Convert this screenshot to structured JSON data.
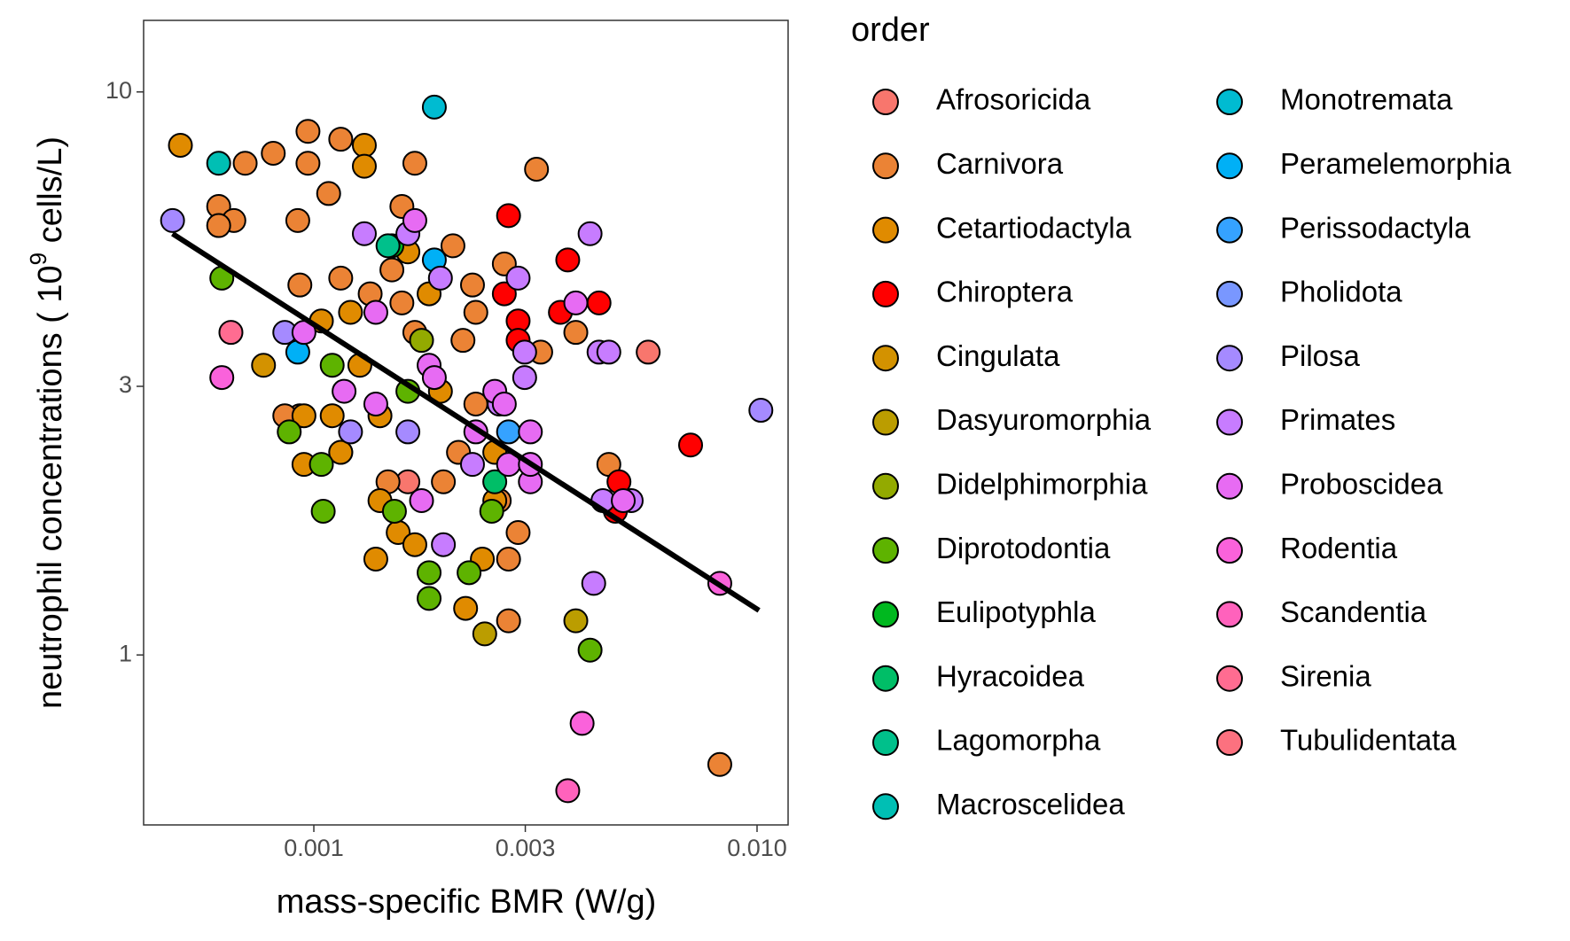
{
  "chart_data": {
    "type": "scatter",
    "xlabel": "mass-specific BMR (W/g)",
    "ylabel": {
      "main": "neutrophil concentrations ( 10",
      "sup": "9",
      "tail": " cells/L)"
    },
    "legend_title": "order",
    "xscale": "log",
    "yscale": "log",
    "xlim": [
      0.000413,
      0.01175
    ],
    "ylim": [
      0.499,
      13.4
    ],
    "xticks": [
      0.001,
      0.003,
      {
        "value": 0.01,
        "label": "0.010"
      }
    ],
    "yticks": [
      1,
      3,
      10
    ],
    "series": [
      {
        "name": "Afrosoricida",
        "color": "#F8766D",
        "x": [
          0.00163,
          0.00568
        ],
        "y": [
          2.03,
          3.45
        ]
      },
      {
        "name": "Carnivora",
        "color": "#EB8335",
        "x": [
          0.00097,
          0.00115,
          0.00097,
          0.00081,
          0.0007,
          0.00169,
          0.00318,
          0.00108,
          0.00158,
          0.00061,
          0.00066,
          0.00061,
          0.00092,
          0.00206,
          0.00269,
          0.0015,
          0.00115,
          0.00093,
          0.00228,
          0.00158,
          0.00134,
          0.00232,
          0.00169,
          0.00217,
          0.00325,
          0.0039,
          0.00093,
          0.00086,
          0.00115,
          0.00212,
          0.00147,
          0.00196,
          0.00262,
          0.00232,
          0.00289,
          0.00275,
          0.00275,
          0.00824,
          0.00463
        ],
        "y": [
          8.51,
          8.24,
          7.47,
          7.78,
          7.47,
          7.47,
          7.29,
          6.6,
          6.26,
          6.26,
          5.91,
          5.79,
          5.91,
          5.33,
          4.95,
          4.83,
          4.67,
          4.54,
          4.54,
          4.22,
          4.38,
          4.06,
          3.74,
          3.62,
          3.45,
          3.74,
          2.66,
          2.66,
          2.29,
          2.29,
          2.03,
          2.03,
          1.88,
          2.79,
          1.65,
          1.48,
          1.15,
          0.639,
          2.18
        ]
      },
      {
        "name": "Cetartiodactyla",
        "color": "#E08B00",
        "x": [
          0.0005,
          0.0013,
          0.0013,
          0.00163,
          0.00104,
          0.00121,
          0.00182,
          0.00127,
          0.00095,
          0.00141,
          0.00095,
          0.0011,
          0.00115,
          0.00155,
          0.00169,
          0.00138,
          0.0024,
          0.0022,
          0.00256,
          0.00256,
          0.00193,
          0.00141
        ],
        "y": [
          8.04,
          8.04,
          7.38,
          5.2,
          3.92,
          4.06,
          4.38,
          3.27,
          2.66,
          2.66,
          2.18,
          2.66,
          2.29,
          1.65,
          1.57,
          1.48,
          1.48,
          1.21,
          1.88,
          2.29,
          2.94,
          1.88
        ]
      },
      {
        "name": "Chiroptera",
        "color": "#FF0000",
        "x": [
          0.00275,
          0.00269,
          0.00374,
          0.0044,
          0.0036,
          0.00289,
          0.00289,
          0.00708,
          0.00488,
          0.00479
        ],
        "y": [
          6.03,
          4.38,
          5.03,
          4.22,
          4.06,
          3.92,
          3.62,
          2.36,
          2.03,
          1.8
        ]
      },
      {
        "name": "Cingulata",
        "color": "#D39200",
        "x": [
          0.00077
        ],
        "y": [
          3.27
        ]
      },
      {
        "name": "Dasyuromorphia",
        "color": "#BB9D00",
        "x": [
          0.00243,
          0.0039
        ],
        "y": [
          1.09,
          1.15
        ]
      },
      {
        "name": "Didelphimorphia",
        "color": "#93AA00",
        "x": [
          0.00175
        ],
        "y": [
          3.62
        ]
      },
      {
        "name": "Diprotodontia",
        "color": "#5EB300",
        "x": [
          0.00062,
          0.0011,
          0.00088,
          0.00104,
          0.00163,
          0.00152,
          0.00105,
          0.00182,
          0.00182,
          0.00224,
          0.0042,
          0.00252
        ],
        "y": [
          4.67,
          3.27,
          2.49,
          2.18,
          2.94,
          1.8,
          1.8,
          1.4,
          1.26,
          1.4,
          1.02,
          1.8
        ]
      },
      {
        "name": "Eulipotyphla",
        "color": "#00B81F",
        "x": [
          0.0015
        ],
        "y": [
          5.33
        ]
      },
      {
        "name": "Hyracoidea",
        "color": "#00BE67",
        "x": [
          0.00256
        ],
        "y": [
          2.03
        ]
      },
      {
        "name": "Lagomorpha",
        "color": "#00C08B",
        "x": [
          0.00147
        ],
        "y": [
          5.33
        ]
      },
      {
        "name": "Macroscelidea",
        "color": "#00BFB4",
        "x": [
          0.00061
        ],
        "y": [
          7.47
        ]
      },
      {
        "name": "Monotremata",
        "color": "#00BBD1",
        "x": [
          0.00187
        ],
        "y": [
          9.4
        ]
      },
      {
        "name": "Peramelemorphia",
        "color": "#00B0F6",
        "x": [
          0.00187,
          0.00092
        ],
        "y": [
          5.03,
          3.45
        ]
      },
      {
        "name": "Perissodactyla",
        "color": "#35A2FF",
        "x": [
          0.00275
        ],
        "y": [
          2.49
        ]
      },
      {
        "name": "Pholidota",
        "color": "#7997FF",
        "x": [],
        "y": []
      },
      {
        "name": "Pilosa",
        "color": "#A58AFF",
        "x": [
          0.00048,
          0.00086,
          0.00121,
          0.00163,
          0.0102
        ],
        "y": [
          5.91,
          3.74,
          2.49,
          2.49,
          2.72
        ]
      },
      {
        "name": "Primates",
        "color": "#C77CFF",
        "x": [
          0.0013,
          0.0042,
          0.00289,
          0.00193,
          0.00299,
          0.00299,
          0.0044,
          0.00463,
          0.00163,
          0.00196,
          0.00428,
          0.00228,
          0.00262,
          0.00449,
          0.0052
        ],
        "y": [
          5.6,
          5.6,
          4.67,
          4.67,
          3.45,
          3.11,
          3.45,
          3.45,
          5.6,
          1.57,
          1.34,
          2.18,
          2.79,
          1.88,
          1.88
        ]
      },
      {
        "name": "Proboscidea",
        "color": "#E76BF3",
        "x": [
          0.00169,
          0.00095,
          0.00138,
          0.00117,
          0.00138,
          0.00182,
          0.00187,
          0.00256,
          0.00269,
          0.00232,
          0.00308,
          0.00308,
          0.00175,
          0.00499,
          0.0039,
          0.00275,
          0.00308
        ],
        "y": [
          5.91,
          3.74,
          4.06,
          2.94,
          2.79,
          3.27,
          3.11,
          2.94,
          2.79,
          2.49,
          2.49,
          2.03,
          1.88,
          1.88,
          4.22,
          2.18,
          2.18
        ]
      },
      {
        "name": "Rodentia",
        "color": "#FA62DB",
        "x": [
          0.00062,
          0.00824,
          0.00403
        ],
        "y": [
          3.11,
          1.34,
          0.756
        ]
      },
      {
        "name": "Scandentia",
        "color": "#FF62BC",
        "x": [
          0.00374
        ],
        "y": [
          0.574
        ]
      },
      {
        "name": "Sirenia",
        "color": "#FF6C91",
        "x": [
          0.00065
        ],
        "y": [
          3.74
        ]
      },
      {
        "name": "Tubulidentata",
        "color": "#FC717F",
        "x": [],
        "y": []
      }
    ],
    "fit": {
      "color": "#000000",
      "x": [
        0.00048,
        0.0101
      ],
      "y": [
        5.6,
        1.2
      ]
    }
  }
}
